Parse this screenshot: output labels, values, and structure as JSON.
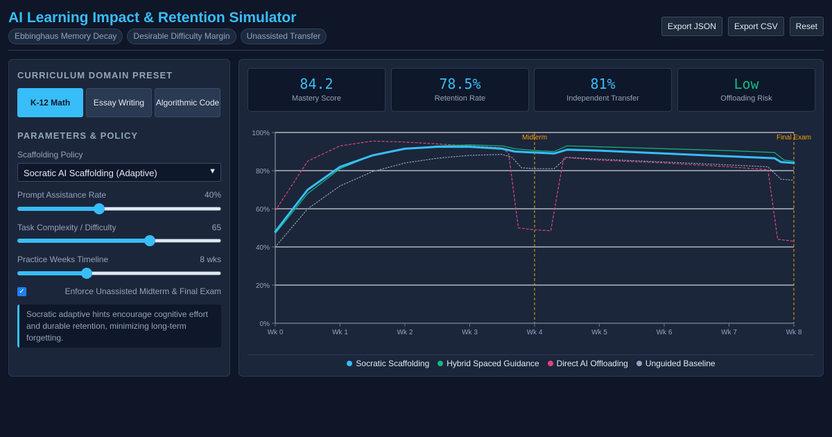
{
  "app": {
    "title": "AI Learning Impact & Retention Simulator",
    "chips": [
      "Ebbinghaus Memory Decay",
      "Desirable Difficulty Margin",
      "Unassisted Transfer"
    ]
  },
  "header_buttons": {
    "export_json": "Export JSON",
    "export_csv": "Export CSV",
    "reset": "Reset"
  },
  "sidebar": {
    "preset_heading": "Curriculum Domain Preset",
    "presets": [
      "K-12 Math",
      "Essay Writing",
      "Algorithmic Code"
    ],
    "active_preset": "K-12 Math",
    "params_heading": "Parameters & Policy",
    "policy_label": "Scaffolding Policy",
    "policy_value": "Socratic AI Scaffolding (Adaptive)",
    "prompt_label": "Prompt Assistance Rate",
    "prompt_value_text": "40%",
    "prompt_value": 40,
    "complexity_label": "Task Complexity / Difficulty",
    "complexity_value_text": "65",
    "complexity_value": 65,
    "weeks_label": "Practice Weeks Timeline",
    "weeks_value_text": "8 wks",
    "weeks_value": 8,
    "weeks_fraction": 0.34,
    "enforce_label": "Enforce Unassisted Midterm & Final Exam",
    "enforce_checked": true,
    "note": "Socratic adaptive hints encourage cognitive effort and durable retention, minimizing long-term forgetting."
  },
  "metrics": [
    {
      "value": "84.2",
      "label": "Mastery Score",
      "color": "#38bdf8"
    },
    {
      "value": "78.5%",
      "label": "Retention Rate",
      "color": "#38bdf8"
    },
    {
      "value": "81%",
      "label": "Independent Transfer",
      "color": "#38bdf8"
    },
    {
      "value": "Low",
      "label": "Offloading Risk",
      "color": "#10b981"
    }
  ],
  "chart_data": {
    "type": "line",
    "title": "",
    "xlabel": "",
    "ylabel": "",
    "x_ticks": [
      "Wk 0",
      "Wk 1",
      "Wk 2",
      "Wk 3",
      "Wk 4",
      "Wk 5",
      "Wk 6",
      "Wk 7",
      "Wk 8"
    ],
    "y_ticks": [
      "0%",
      "20%",
      "40%",
      "60%",
      "80%",
      "100%"
    ],
    "xlim": [
      0,
      8
    ],
    "ylim": [
      0,
      100
    ],
    "grid": true,
    "legend_position": "bottom",
    "annotations": [
      {
        "label": "Midterm",
        "x": 4.0
      },
      {
        "label": "Final Exam",
        "x": 8.0
      }
    ],
    "series": [
      {
        "name": "Socratic Scaffolding",
        "color": "#38bdf8",
        "style": "solid-thick",
        "points": [
          [
            0,
            48
          ],
          [
            0.5,
            70
          ],
          [
            1,
            82
          ],
          [
            1.5,
            88
          ],
          [
            2,
            91.5
          ],
          [
            2.5,
            92.5
          ],
          [
            3,
            92.5
          ],
          [
            3.5,
            91.5
          ],
          [
            3.7,
            90
          ],
          [
            4,
            89.5
          ],
          [
            4.3,
            89
          ],
          [
            4.5,
            91
          ],
          [
            5,
            90.5
          ],
          [
            6,
            89
          ],
          [
            7,
            87.5
          ],
          [
            7.7,
            86.5
          ],
          [
            7.8,
            84.5
          ],
          [
            8,
            84
          ]
        ]
      },
      {
        "name": "Hybrid Spaced Guidance",
        "color": "#10b981",
        "style": "solid-thin",
        "points": [
          [
            0,
            47
          ],
          [
            0.5,
            68
          ],
          [
            1,
            81
          ],
          [
            1.5,
            88
          ],
          [
            2,
            91.5
          ],
          [
            2.5,
            93
          ],
          [
            3,
            93.5
          ],
          [
            3.5,
            93
          ],
          [
            3.7,
            91.5
          ],
          [
            4,
            90.5
          ],
          [
            4.3,
            90
          ],
          [
            4.5,
            93
          ],
          [
            5,
            92.5
          ],
          [
            6,
            91.5
          ],
          [
            7,
            90.5
          ],
          [
            7.7,
            89.5
          ],
          [
            7.85,
            85.5
          ],
          [
            8,
            85
          ]
        ]
      },
      {
        "name": "Direct AI Offloading",
        "color": "#e0457a",
        "style": "dashed",
        "points": [
          [
            0,
            59
          ],
          [
            0.5,
            85
          ],
          [
            1,
            93
          ],
          [
            1.5,
            95.5
          ],
          [
            2,
            95
          ],
          [
            2.5,
            94
          ],
          [
            3,
            93
          ],
          [
            3.5,
            92
          ],
          [
            3.6,
            89
          ],
          [
            3.75,
            50
          ],
          [
            4,
            49
          ],
          [
            4.25,
            48.5
          ],
          [
            4.45,
            87
          ],
          [
            5,
            85.5
          ],
          [
            6,
            84
          ],
          [
            7,
            82
          ],
          [
            7.6,
            80.5
          ],
          [
            7.75,
            44
          ],
          [
            8,
            43
          ]
        ]
      },
      {
        "name": "Unguided Baseline",
        "color": "#94a3b8",
        "style": "dotted",
        "points": [
          [
            0,
            40
          ],
          [
            0.5,
            60
          ],
          [
            1,
            72
          ],
          [
            1.5,
            79.5
          ],
          [
            2,
            84
          ],
          [
            2.5,
            86.5
          ],
          [
            3,
            88
          ],
          [
            3.5,
            88.5
          ],
          [
            3.65,
            87
          ],
          [
            3.8,
            81.5
          ],
          [
            4,
            81
          ],
          [
            4.3,
            81
          ],
          [
            4.5,
            87
          ],
          [
            5,
            86
          ],
          [
            6,
            84.5
          ],
          [
            7,
            83
          ],
          [
            7.6,
            82
          ],
          [
            7.8,
            75.5
          ],
          [
            8,
            75
          ]
        ]
      }
    ]
  }
}
